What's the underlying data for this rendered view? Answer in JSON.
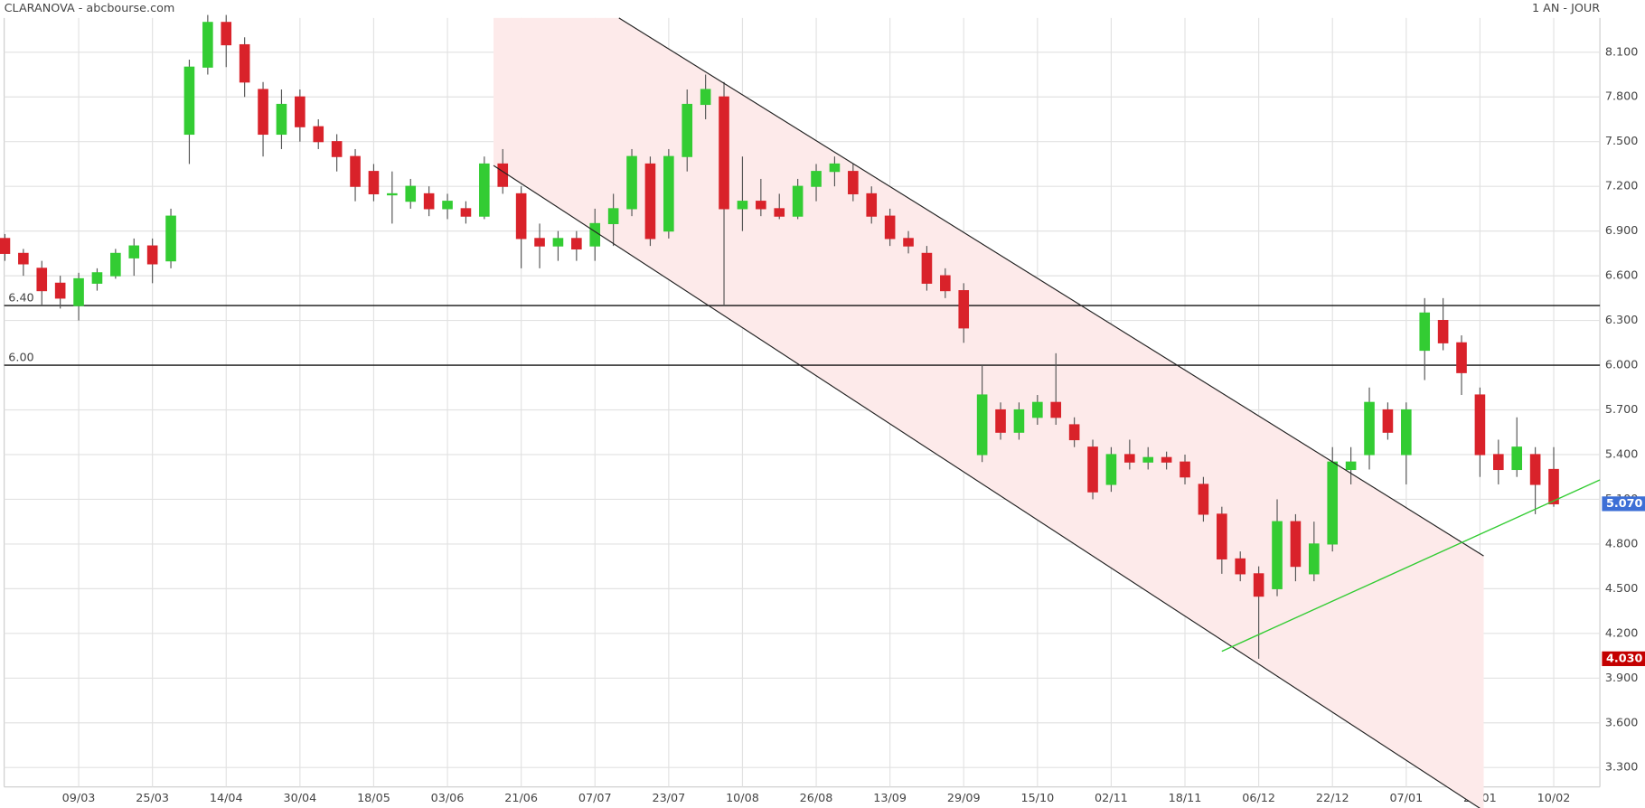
{
  "chart_data": {
    "type": "candlestick",
    "title": "CLARANOVA - abcbourse.com",
    "subtitle": "1 AN - JOUR",
    "categories": [
      null,
      null,
      null,
      null,
      "09/03",
      null,
      null,
      null,
      "25/03",
      null,
      null,
      null,
      "14/04",
      null,
      null,
      null,
      "30/04",
      null,
      null,
      null,
      "18/05",
      null,
      null,
      null,
      "03/06",
      null,
      null,
      null,
      "21/06",
      null,
      null,
      null,
      "07/07",
      null,
      null,
      null,
      "23/07",
      null,
      null,
      null,
      "10/08",
      null,
      null,
      null,
      "26/08",
      null,
      null,
      null,
      "13/09",
      null,
      null,
      null,
      "29/09",
      null,
      null,
      null,
      "15/10",
      null,
      null,
      null,
      "02/11",
      null,
      null,
      null,
      "18/11",
      null,
      null,
      null,
      "06/12",
      null,
      null,
      null,
      "22/12",
      null,
      null,
      null,
      "07/01",
      null,
      null,
      null,
      "25/01",
      null,
      null,
      null,
      "10/02"
    ],
    "series": [
      {
        "up_color": "#33cc33",
        "down_color": "#d9222a",
        "values": [
          [
            6.85,
            6.88,
            6.7,
            6.75
          ],
          [
            6.75,
            6.78,
            6.6,
            6.68
          ],
          [
            6.65,
            6.7,
            6.4,
            6.5
          ],
          [
            6.55,
            6.6,
            6.38,
            6.45
          ],
          [
            6.4,
            6.62,
            6.3,
            6.58
          ],
          [
            6.55,
            6.65,
            6.5,
            6.62
          ],
          [
            6.6,
            6.78,
            6.58,
            6.75
          ],
          [
            6.72,
            6.85,
            6.6,
            6.8
          ],
          [
            6.8,
            6.85,
            6.55,
            6.68
          ],
          [
            6.7,
            7.05,
            6.65,
            7.0
          ],
          [
            7.55,
            8.05,
            7.35,
            8.0
          ],
          [
            8.0,
            8.35,
            7.95,
            8.3
          ],
          [
            8.3,
            8.35,
            8.0,
            8.15
          ],
          [
            8.15,
            8.2,
            7.8,
            7.9
          ],
          [
            7.85,
            7.9,
            7.4,
            7.55
          ],
          [
            7.55,
            7.85,
            7.45,
            7.75
          ],
          [
            7.8,
            7.85,
            7.5,
            7.6
          ],
          [
            7.6,
            7.65,
            7.45,
            7.5
          ],
          [
            7.5,
            7.55,
            7.3,
            7.4
          ],
          [
            7.4,
            7.45,
            7.1,
            7.2
          ],
          [
            7.3,
            7.35,
            7.1,
            7.15
          ],
          [
            7.15,
            7.3,
            6.95,
            7.15
          ],
          [
            7.1,
            7.25,
            7.05,
            7.2
          ],
          [
            7.15,
            7.2,
            7.0,
            7.05
          ],
          [
            7.05,
            7.15,
            6.98,
            7.1
          ],
          [
            7.05,
            7.1,
            6.95,
            7.0
          ],
          [
            7.0,
            7.4,
            6.98,
            7.35
          ],
          [
            7.35,
            7.45,
            7.15,
            7.2
          ],
          [
            7.15,
            7.2,
            6.65,
            6.85
          ],
          [
            6.85,
            6.95,
            6.65,
            6.8
          ],
          [
            6.8,
            6.9,
            6.7,
            6.85
          ],
          [
            6.85,
            6.9,
            6.7,
            6.78
          ],
          [
            6.8,
            7.05,
            6.7,
            6.95
          ],
          [
            6.95,
            7.15,
            6.8,
            7.05
          ],
          [
            7.05,
            7.45,
            7.0,
            7.4
          ],
          [
            7.35,
            7.4,
            6.8,
            6.85
          ],
          [
            6.9,
            7.45,
            6.85,
            7.4
          ],
          [
            7.4,
            7.85,
            7.3,
            7.75
          ],
          [
            7.75,
            7.95,
            7.65,
            7.85
          ],
          [
            7.8,
            7.9,
            6.4,
            7.05
          ],
          [
            7.05,
            7.4,
            6.9,
            7.1
          ],
          [
            7.1,
            7.25,
            7.0,
            7.05
          ],
          [
            7.05,
            7.15,
            6.98,
            7.0
          ],
          [
            7.0,
            7.25,
            6.98,
            7.2
          ],
          [
            7.2,
            7.35,
            7.1,
            7.3
          ],
          [
            7.3,
            7.4,
            7.2,
            7.35
          ],
          [
            7.3,
            7.35,
            7.1,
            7.15
          ],
          [
            7.15,
            7.2,
            6.95,
            7.0
          ],
          [
            7.0,
            7.05,
            6.8,
            6.85
          ],
          [
            6.85,
            6.9,
            6.75,
            6.8
          ],
          [
            6.75,
            6.8,
            6.5,
            6.55
          ],
          [
            6.6,
            6.65,
            6.45,
            6.5
          ],
          [
            6.5,
            6.55,
            6.15,
            6.25
          ],
          [
            5.4,
            6.0,
            5.35,
            5.8
          ],
          [
            5.7,
            5.75,
            5.5,
            5.55
          ],
          [
            5.55,
            5.75,
            5.5,
            5.7
          ],
          [
            5.65,
            5.8,
            5.6,
            5.75
          ],
          [
            5.75,
            6.08,
            5.6,
            5.65
          ],
          [
            5.6,
            5.65,
            5.45,
            5.5
          ],
          [
            5.45,
            5.5,
            5.1,
            5.15
          ],
          [
            5.2,
            5.45,
            5.15,
            5.4
          ],
          [
            5.4,
            5.5,
            5.3,
            5.35
          ],
          [
            5.35,
            5.45,
            5.3,
            5.38
          ],
          [
            5.38,
            5.42,
            5.3,
            5.35
          ],
          [
            5.35,
            5.4,
            5.2,
            5.25
          ],
          [
            5.2,
            5.25,
            4.95,
            5.0
          ],
          [
            5.0,
            5.05,
            4.6,
            4.7
          ],
          [
            4.7,
            4.75,
            4.55,
            4.6
          ],
          [
            4.6,
            4.65,
            4.03,
            4.45
          ],
          [
            4.5,
            5.1,
            4.45,
            4.95
          ],
          [
            4.95,
            5.0,
            4.55,
            4.65
          ],
          [
            4.6,
            4.95,
            4.55,
            4.8
          ],
          [
            4.8,
            5.45,
            4.75,
            5.35
          ],
          [
            5.3,
            5.45,
            5.2,
            5.35
          ],
          [
            5.4,
            5.85,
            5.3,
            5.75
          ],
          [
            5.7,
            5.75,
            5.5,
            5.55
          ],
          [
            5.4,
            5.75,
            5.2,
            5.7
          ],
          [
            6.1,
            6.45,
            5.9,
            6.35
          ],
          [
            6.3,
            6.45,
            6.1,
            6.15
          ],
          [
            6.15,
            6.2,
            5.8,
            5.95
          ],
          [
            5.8,
            5.85,
            5.25,
            5.4
          ],
          [
            5.4,
            5.5,
            5.2,
            5.3
          ],
          [
            5.3,
            5.65,
            5.25,
            5.45
          ],
          [
            5.4,
            5.45,
            5.0,
            5.2
          ],
          [
            5.3,
            5.45,
            5.05,
            5.07
          ]
        ]
      }
    ],
    "ylim": [
      3.17,
      8.33
    ],
    "yticks": [
      {
        "value": 3.3,
        "label": "3.300"
      },
      {
        "value": 3.6,
        "label": "3.600"
      },
      {
        "value": 3.9,
        "label": "3.900"
      },
      {
        "value": 4.2,
        "label": "4.200"
      },
      {
        "value": 4.5,
        "label": "4.500"
      },
      {
        "value": 4.8,
        "label": "4.800"
      },
      {
        "value": 5.1,
        "label": "5.100"
      },
      {
        "value": 5.4,
        "label": "5.400"
      },
      {
        "value": 5.7,
        "label": "5.700"
      },
      {
        "value": 6.0,
        "label": "6.000"
      },
      {
        "value": 6.3,
        "label": "6.300"
      },
      {
        "value": 6.6,
        "label": "6.600"
      },
      {
        "value": 6.9,
        "label": "6.900"
      },
      {
        "value": 7.2,
        "label": "7.200"
      },
      {
        "value": 7.5,
        "label": "7.500"
      },
      {
        "value": 7.8,
        "label": "7.800"
      },
      {
        "value": 8.1,
        "label": "8.100"
      }
    ],
    "grid": true,
    "levels": [
      {
        "value": 6.4,
        "label": "6.40"
      },
      {
        "value": 6.0,
        "label": "6.00"
      }
    ],
    "channel": {
      "color": "#222222",
      "fill": "#fdeaea",
      "upper": {
        "x": [
          33.3,
          80.2
        ],
        "y": [
          8.33,
          4.72
        ]
      },
      "lower": {
        "x": [
          26.5,
          80.2
        ],
        "y": [
          7.34,
          3.01
        ]
      }
    },
    "support": {
      "color": "#33cc33",
      "x": [
        66.0,
        86.5
      ],
      "y": [
        4.08,
        5.23
      ]
    },
    "price_badges": [
      {
        "value": 5.07,
        "label": "5.070",
        "color": "#3d6fd6"
      },
      {
        "value": 4.03,
        "label": "4.030",
        "color": "#c40000"
      }
    ]
  }
}
